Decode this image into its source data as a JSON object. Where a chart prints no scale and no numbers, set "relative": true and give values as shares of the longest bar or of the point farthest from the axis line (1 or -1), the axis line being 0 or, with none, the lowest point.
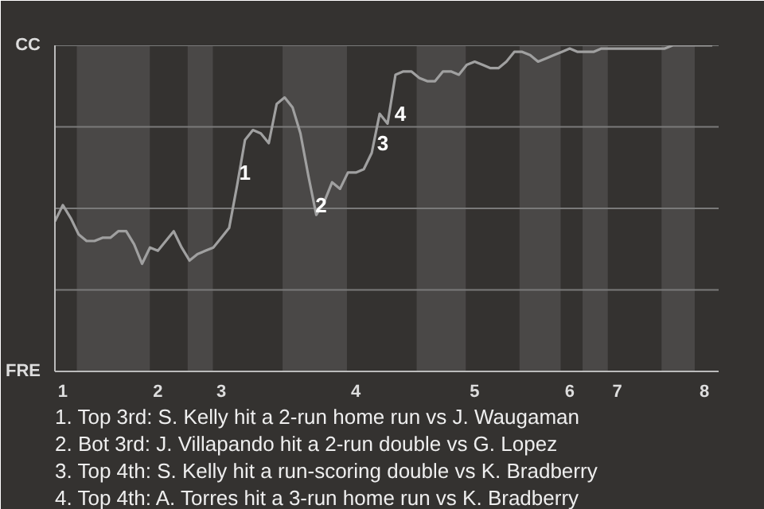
{
  "chart_data": {
    "type": "line",
    "relative": true,
    "categories": [
      null,
      "1",
      null,
      null,
      null,
      null,
      null,
      null,
      null,
      null,
      null,
      null,
      null,
      "2",
      null,
      null,
      null,
      null,
      null,
      null,
      null,
      "3",
      null,
      null,
      null,
      null,
      null,
      null,
      null,
      null,
      null,
      null,
      null,
      null,
      null,
      null,
      null,
      null,
      "4",
      null,
      null,
      null,
      null,
      null,
      null,
      null,
      null,
      null,
      null,
      null,
      null,
      null,
      null,
      "5",
      null,
      null,
      null,
      null,
      null,
      null,
      null,
      null,
      null,
      null,
      null,
      "6",
      null,
      null,
      null,
      null,
      null,
      "7",
      null,
      null,
      null,
      null,
      null,
      null,
      null,
      null,
      null,
      null,
      "8",
      null
    ],
    "series": [
      {
        "color": "#a0a0a0",
        "values": [
          0.46,
          0.51,
          0.47,
          0.42,
          0.4,
          0.4,
          0.41,
          0.41,
          0.43,
          0.43,
          0.39,
          0.33,
          0.38,
          0.37,
          0.4,
          0.43,
          0.38,
          0.34,
          0.36,
          0.37,
          0.38,
          0.41,
          0.44,
          0.57,
          0.71,
          0.74,
          0.73,
          0.7,
          0.82,
          0.84,
          0.81,
          0.73,
          0.6,
          0.48,
          0.52,
          0.58,
          0.56,
          0.61,
          0.61,
          0.62,
          0.67,
          0.79,
          0.76,
          0.91,
          0.92,
          0.92,
          0.9,
          0.89,
          0.89,
          0.92,
          0.92,
          0.91,
          0.94,
          0.95,
          0.94,
          0.93,
          0.93,
          0.95,
          0.98,
          0.98,
          0.97,
          0.95,
          0.96,
          0.97,
          0.98,
          0.99,
          0.98,
          0.98,
          0.98,
          0.99,
          0.99,
          0.99,
          0.99,
          0.99,
          0.99,
          0.99,
          0.99,
          0.99,
          1.0,
          1.0,
          1.0,
          1.0,
          1.0,
          1.0
        ]
      }
    ],
    "grid": "y",
    "marker": "none",
    "line_style": "solid",
    "annotations": [
      "CC",
      "FRE",
      "1",
      "2",
      "3",
      "4",
      "1. Top 3rd: S. Kelly hit a 2-run home run vs J. Waugaman",
      "2. Bot 3rd: J. Villapando hit a 2-run double vs G. Lopez",
      "3. Top 4th: S. Kelly hit a run-scoring double vs K. Bradberry",
      "4. Top 4th: A. Torres hit a 3-run home run vs K. Bradberry"
    ]
  }
}
